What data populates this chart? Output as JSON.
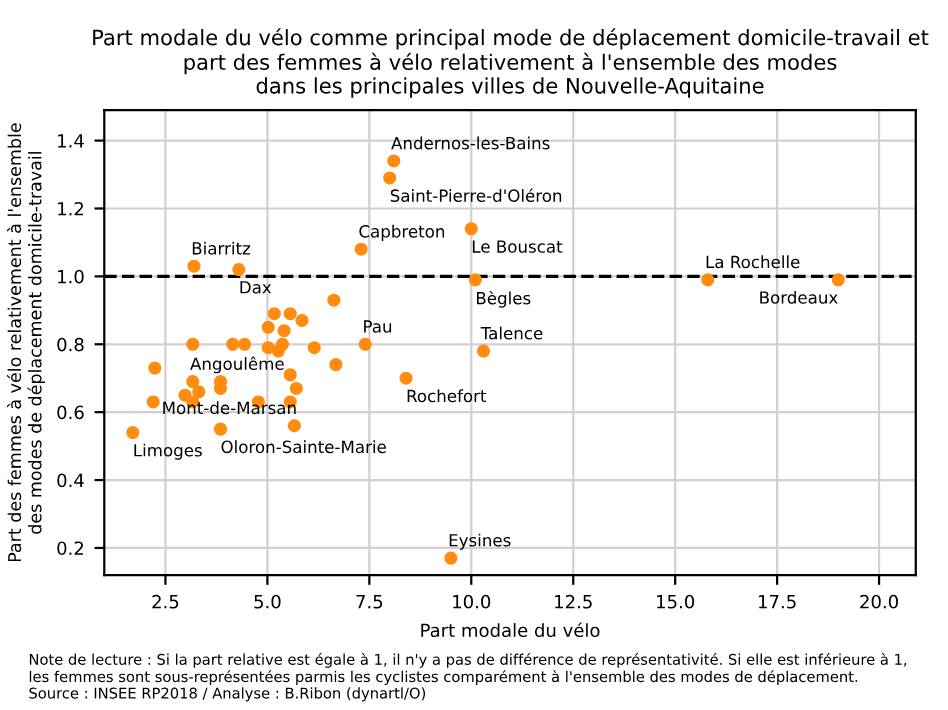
{
  "chart_data": {
    "type": "scatter",
    "title": "Part modale du vélo comme principal mode de déplacement domicile-travail et\npart des femmes à vélo relativement à l'ensemble des modes\ndans les principales villes de Nouvelle-Aquitaine",
    "xlabel": "Part modale du vélo",
    "ylabel": "Part des femmes à vélo relativement à l'ensemble\ndes modes de déplacement domicile-travail",
    "series": [
      {
        "color": "#ff8c0f",
        "x": [
          8.1,
          8.0,
          10.0,
          7.3,
          3.2,
          4.3,
          10.1,
          15.8,
          19.0,
          10.3,
          7.4,
          8.4,
          9.5,
          1.7,
          3.85,
          5.66,
          3.17,
          6.63,
          5.17,
          5.56,
          5.02,
          5.41,
          5.85,
          3.17,
          4.15,
          4.44,
          5.02,
          5.37,
          5.27,
          6.15,
          6.68,
          2.24,
          3.85,
          3.85,
          3.32,
          2.98,
          3.17,
          5.56,
          5.71,
          2.2,
          4.78,
          5.56
        ],
        "values": [
          1.34,
          1.29,
          1.14,
          1.08,
          1.03,
          1.02,
          0.99,
          0.99,
          0.99,
          0.78,
          0.8,
          0.7,
          0.17,
          0.54,
          0.55,
          0.56,
          0.69,
          0.93,
          0.89,
          0.89,
          0.85,
          0.84,
          0.87,
          0.8,
          0.8,
          0.8,
          0.79,
          0.8,
          0.78,
          0.79,
          0.74,
          0.73,
          0.69,
          0.67,
          0.66,
          0.65,
          0.63,
          0.71,
          0.67,
          0.63,
          0.63,
          0.63
        ]
      }
    ],
    "xlim": [
      1.0,
      20.9
    ],
    "ylim": [
      0.12,
      1.49
    ],
    "xticks": [
      {
        "value": 2.5,
        "label": "2.5"
      },
      {
        "value": 5,
        "label": "5.0"
      },
      {
        "value": 7.5,
        "label": "7.5"
      },
      {
        "value": 10,
        "label": "10.0"
      },
      {
        "value": 12.5,
        "label": "12.5"
      },
      {
        "value": 15,
        "label": "15.0"
      },
      {
        "value": 17.5,
        "label": "17.5"
      },
      {
        "value": 20,
        "label": "20.0"
      }
    ],
    "yticks": [
      {
        "value": 0.2,
        "label": "0.2"
      },
      {
        "value": 0.4,
        "label": "0.4"
      },
      {
        "value": 0.6,
        "label": "0.6"
      },
      {
        "value": 0.8,
        "label": "0.8"
      },
      {
        "value": 1.0,
        "label": "1.0"
      },
      {
        "value": 1.2,
        "label": "1.2"
      },
      {
        "value": 1.4,
        "label": "1.4"
      }
    ],
    "ref_lines": [
      {
        "axis": "y",
        "value": 1.0,
        "color": "#000000",
        "line_style": "dashed"
      }
    ],
    "grid": true,
    "marker": "circle",
    "annotations": [
      {
        "text": "Andernos-les-Bains",
        "x": 8.1,
        "y": 1.34
      },
      {
        "text": "Saint-Pierre-d'Oléron",
        "x": 8.0,
        "y": 1.29
      },
      {
        "text": "Le Bouscat",
        "x": 10.0,
        "y": 1.14
      },
      {
        "text": "Capbreton",
        "x": 7.3,
        "y": 1.08
      },
      {
        "text": "Biarritz",
        "x": 3.2,
        "y": 1.03
      },
      {
        "text": "Dax",
        "x": 4.3,
        "y": 1.02
      },
      {
        "text": "Bègles",
        "x": 10.1,
        "y": 0.99
      },
      {
        "text": "La Rochelle",
        "x": 15.8,
        "y": 0.99
      },
      {
        "text": "Bordeaux",
        "x": 19.0,
        "y": 0.99
      },
      {
        "text": "Talence",
        "x": 10.3,
        "y": 0.78
      },
      {
        "text": "Pau",
        "x": 7.4,
        "y": 0.8
      },
      {
        "text": "Rochefort",
        "x": 8.4,
        "y": 0.7
      },
      {
        "text": "Eysines",
        "x": 9.5,
        "y": 0.17
      },
      {
        "text": "Limoges",
        "x": 1.7,
        "y": 0.54
      },
      {
        "text": "Oloron-Sainte-Marie",
        "x": 3.85,
        "y": 0.55
      },
      {
        "text": "Mont-de-Marsan",
        "x": 5.66,
        "y": 0.56
      },
      {
        "text": "Angoulême",
        "x": 3.17,
        "y": 0.69
      },
      "Note de lecture : Si la part relative est égale à 1, il n'y a pas de différence de représentativité. Si elle est inférieure à 1,\nles femmes sont sous-représentées parmis les cyclistes comparément à l'ensemble des modes de déplacement.\nSource : INSEE RP2018 / Analyse : B.Ribon (dynartl/O)"
    ]
  }
}
